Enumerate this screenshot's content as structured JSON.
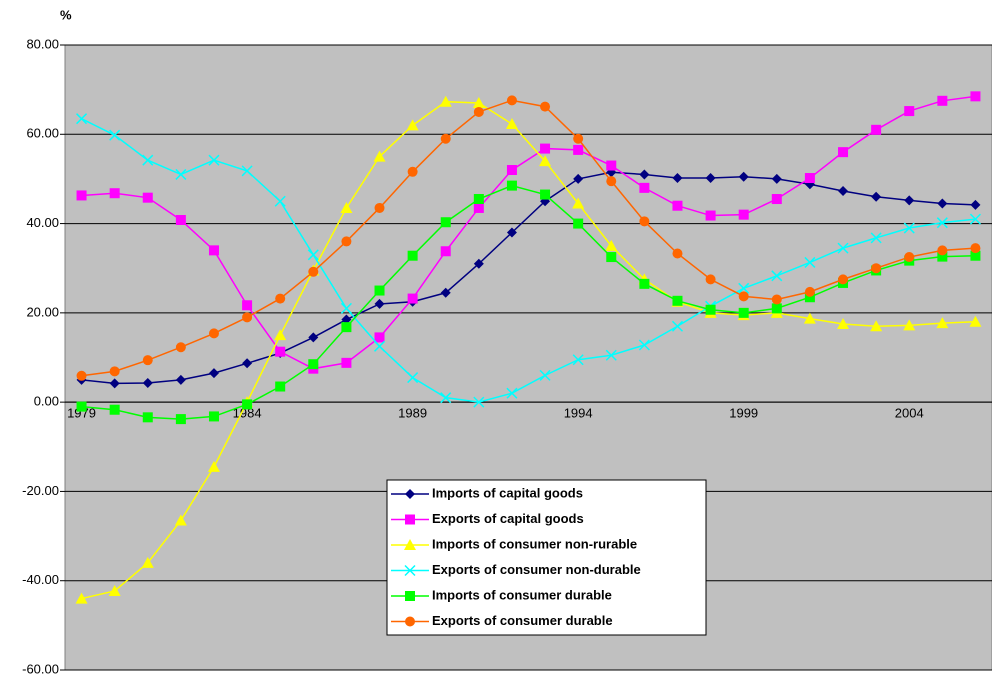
{
  "chart_data": {
    "type": "line",
    "y_axis_label": "%",
    "categories": [
      "1979",
      null,
      null,
      null,
      null,
      "1984",
      null,
      null,
      null,
      null,
      "1989",
      null,
      null,
      null,
      null,
      "1994",
      null,
      null,
      null,
      null,
      "1999",
      null,
      null,
      null,
      null,
      "2004",
      null,
      null
    ],
    "ylim": [
      -60,
      80
    ],
    "yticks": [
      {
        "value": -60,
        "label": "-60.00"
      },
      {
        "value": -40,
        "label": "-40.00"
      },
      {
        "value": -20,
        "label": "-20.00"
      },
      {
        "value": 0,
        "label": "0.00"
      },
      {
        "value": 20,
        "label": "20.00"
      },
      {
        "value": 40,
        "label": "40.00"
      },
      {
        "value": 60,
        "label": "60.00"
      },
      {
        "value": 80,
        "label": "80.00"
      }
    ],
    "grid": true,
    "background": "#c0c0c0",
    "series": [
      {
        "name": "Imports of capital goods",
        "color": "#000080",
        "marker": "diamond",
        "values": [
          5,
          4.2,
          4.3,
          5,
          6.5,
          8.7,
          11,
          14.5,
          18.5,
          22,
          22.5,
          24.5,
          31,
          38,
          45,
          50,
          51.5,
          51,
          50.2,
          50.2,
          50.5,
          50,
          48.8,
          47.3,
          46,
          45.2,
          44.5,
          44.2
        ]
      },
      {
        "name": "Exports of capital goods",
        "color": "#ff00ff",
        "marker": "square",
        "values": [
          46.3,
          46.8,
          45.8,
          40.8,
          34,
          21.7,
          11.3,
          7.5,
          8.8,
          14.5,
          23.2,
          33.8,
          43.5,
          52,
          56.8,
          56.5,
          53,
          48,
          44,
          41.8,
          42,
          45.5,
          50.2,
          56,
          61,
          65.2,
          67.5,
          68.5
        ]
      },
      {
        "name": "Imports of consumer non-rurable",
        "color": "#ffff00",
        "marker": "triangle",
        "values": [
          -44,
          -42.3,
          -36,
          -26.5,
          -14.5,
          0,
          15,
          29.5,
          43.5,
          55,
          62,
          67.3,
          67,
          62.3,
          54,
          44.5,
          35,
          27.5,
          22.5,
          20,
          19.5,
          20,
          18.7,
          17.5,
          17,
          17.2,
          17.7,
          18
        ]
      },
      {
        "name": "Exports of consumer non-durable",
        "color": "#00ffff",
        "marker": "cross",
        "values": [
          63.5,
          59.8,
          54.2,
          51,
          54.2,
          51.8,
          45,
          33,
          21,
          12.5,
          5.5,
          1,
          0,
          2,
          6,
          9.5,
          10.5,
          12.8,
          17,
          21.5,
          25.5,
          28.3,
          31.3,
          34.5,
          36.8,
          39,
          40.2,
          41
        ]
      },
      {
        "name": "Imports of consumer durable",
        "color": "#00ff00",
        "marker": "square",
        "values": [
          -1,
          -1.7,
          -3.4,
          -3.8,
          -3.2,
          -0.5,
          3.5,
          8.5,
          16.8,
          25,
          32.8,
          40.3,
          45.5,
          48.5,
          46.5,
          40,
          32.5,
          26.5,
          22.7,
          20.7,
          20,
          21,
          23.5,
          26.7,
          29.5,
          31.7,
          32.6,
          32.8
        ]
      },
      {
        "name": "Exports of consumer durable",
        "color": "#ff6600",
        "marker": "circle",
        "values": [
          5.9,
          6.9,
          9.4,
          12.3,
          15.4,
          19,
          23.2,
          29.2,
          36,
          43.5,
          51.6,
          59,
          65,
          67.6,
          66.2,
          59,
          49.5,
          40.5,
          33.3,
          27.5,
          23.7,
          23,
          24.7,
          27.5,
          30,
          32.5,
          34,
          34.5
        ]
      }
    ]
  }
}
